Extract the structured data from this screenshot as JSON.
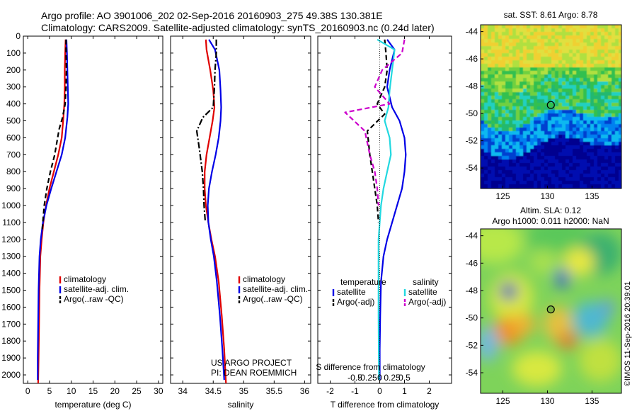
{
  "header": {
    "line1": "Argo profile: AO 3901006_202 02-Sep-2016 20160903_275 49.38S 130.381E",
    "line2": "Climatology: CARS2009. Satellite-adjusted climatology: synTS_20160903.nc (0.24d later)"
  },
  "colors": {
    "climatology": "#e00000",
    "satellite": "#0000e6",
    "argo": "#000000",
    "s_satellite": "#22d8e0",
    "s_argo": "#cc00cc"
  },
  "chart_data": [
    {
      "type": "line",
      "xlabel": "temperature (deg C)",
      "xlim": [
        -1,
        31
      ],
      "ylim": [
        2050,
        0
      ],
      "xticks": [
        0,
        5,
        10,
        15,
        20,
        25,
        30
      ],
      "xticklabels": [
        "0",
        "5",
        "10",
        "15",
        "20",
        "25",
        "30"
      ],
      "yticks": [
        0,
        100,
        200,
        300,
        400,
        500,
        600,
        700,
        800,
        900,
        1000,
        1100,
        1200,
        1300,
        1400,
        1500,
        1600,
        1700,
        1800,
        1900,
        2000
      ],
      "yticklabels": [
        "0",
        "100",
        "200",
        "300",
        "400",
        "500",
        "600",
        "700",
        "800",
        "900",
        "1000",
        "1100",
        "1200",
        "1300",
        "1400",
        "1500",
        "1600",
        "1700",
        "1800",
        "1900",
        "2000"
      ],
      "legend": [
        "climatology",
        "satellite-adj. clim.",
        "Argo(..raw -QC)"
      ],
      "series": [
        {
          "name": "climatology",
          "style": "solid",
          "color": "#e00000",
          "x": [
            8.7,
            8.6,
            8.5,
            8.5,
            8.4,
            8.2,
            7.8,
            7.0,
            6.0,
            5.0,
            4.2,
            3.6,
            3.2,
            2.9,
            2.7,
            2.6,
            2.5,
            2.4
          ],
          "y": [
            20,
            100,
            200,
            300,
            400,
            480,
            600,
            700,
            800,
            900,
            1000,
            1100,
            1200,
            1300,
            1500,
            1700,
            1900,
            2050
          ]
        },
        {
          "name": "satellite-adj. clim.",
          "style": "solid",
          "color": "#0000e6",
          "x": [
            8.9,
            9.0,
            9.1,
            9.2,
            9.3,
            9.1,
            8.6,
            7.8,
            6.6,
            5.4,
            4.3,
            3.5,
            3.0,
            2.7,
            2.5,
            2.4,
            2.3,
            2.3
          ],
          "y": [
            20,
            100,
            200,
            300,
            400,
            480,
            600,
            700,
            800,
            900,
            1000,
            1100,
            1200,
            1300,
            1500,
            1700,
            1900,
            2030
          ]
        },
        {
          "name": "Argo(..raw -QC)",
          "style": "dashed",
          "color": "#000000",
          "x": [
            8.8,
            8.8,
            8.9,
            8.8,
            8.6,
            8.0,
            7.2,
            6.2,
            5.2,
            4.4,
            3.8,
            3.3
          ],
          "y": [
            20,
            100,
            200,
            300,
            400,
            480,
            550,
            700,
            800,
            900,
            1000,
            1150
          ]
        }
      ]
    },
    {
      "type": "line",
      "xlabel": "salinity",
      "xlim": [
        33.8,
        36.1
      ],
      "ylim": [
        2050,
        0
      ],
      "xticks": [
        34,
        34.5,
        35,
        35.5,
        36
      ],
      "xticklabels": [
        "34",
        "34.5",
        "35",
        "35.5",
        "36"
      ],
      "legend": [
        "climatology",
        "satellite-adj. clim.",
        "Argo(..raw -QC)"
      ],
      "annotation": [
        "US ARGO PROJECT",
        "PI: DEAN ROEMMICH"
      ],
      "series": [
        {
          "name": "climatology",
          "style": "solid",
          "color": "#e00000",
          "x": [
            34.38,
            34.39,
            34.45,
            34.5,
            34.52,
            34.49,
            34.44,
            34.39,
            34.36,
            34.36,
            34.38,
            34.42,
            34.47,
            34.53,
            34.59,
            34.64,
            34.68,
            34.71
          ],
          "y": [
            20,
            80,
            200,
            320,
            420,
            500,
            600,
            700,
            800,
            900,
            1000,
            1100,
            1200,
            1300,
            1450,
            1650,
            1850,
            2050
          ]
        },
        {
          "name": "satellite-adj. clim.",
          "style": "solid",
          "color": "#0000e6",
          "x": [
            34.43,
            34.53,
            34.6,
            34.62,
            34.63,
            34.62,
            34.59,
            34.54,
            34.48,
            34.43,
            34.41,
            34.42,
            34.46,
            34.51,
            34.56,
            34.61,
            34.65,
            34.68
          ],
          "y": [
            20,
            80,
            200,
            320,
            420,
            500,
            600,
            700,
            800,
            900,
            1000,
            1100,
            1200,
            1300,
            1450,
            1650,
            1850,
            2030
          ]
        },
        {
          "name": "Argo(..raw -QC)",
          "style": "dashdot",
          "color": "#000000",
          "x": [
            34.55,
            34.55,
            34.53,
            34.52,
            34.5,
            34.33,
            34.23,
            34.27,
            34.32,
            34.34,
            34.35,
            34.37
          ],
          "y": [
            20,
            100,
            200,
            300,
            420,
            480,
            560,
            660,
            800,
            900,
            1000,
            1100
          ]
        }
      ]
    },
    {
      "type": "line",
      "xlabel": "T difference from climatology",
      "top_label": "S difference from climatology",
      "xlim": [
        -2.5,
        2.9
      ],
      "ylim": [
        2050,
        0
      ],
      "xticks": [
        -2,
        -1,
        0,
        1,
        2
      ],
      "xticklabels": [
        "-2",
        "-1",
        "0",
        "1",
        "2"
      ],
      "top_ticklabels": [
        "-0.5",
        "-0.25",
        "0",
        "0.25",
        "0.5"
      ],
      "legend_columns": [
        {
          "heading": "temperature",
          "items": [
            "satellite",
            "Argo(-adj)"
          ]
        },
        {
          "heading": "salinity",
          "items": [
            "satellite",
            "Argo(-adj)"
          ]
        }
      ],
      "series": [
        {
          "name": "temperature satellite",
          "style": "solid",
          "color": "#0000e6",
          "x": [
            0.3,
            0.6,
            0.4,
            0.3,
            0.5,
            0.8,
            1.0,
            1.05,
            1.0,
            0.9,
            0.7,
            0.5,
            0.3,
            0.15,
            0.05,
            0.02,
            0.0,
            0.0
          ],
          "y": [
            20,
            80,
            200,
            300,
            420,
            500,
            600,
            700,
            800,
            900,
            1000,
            1100,
            1200,
            1300,
            1450,
            1650,
            1850,
            2030
          ]
        },
        {
          "name": "temperature Argo(-adj)",
          "style": "dashed",
          "color": "#000000",
          "x": [
            0.2,
            0.25,
            0.3,
            0.2,
            -0.1,
            0.2,
            -0.5,
            -0.4,
            -0.3,
            -0.2,
            -0.1,
            -0.05
          ],
          "y": [
            20,
            100,
            200,
            300,
            400,
            460,
            560,
            700,
            800,
            900,
            1000,
            1100
          ]
        },
        {
          "name": "salinity satellite",
          "style": "solid",
          "color": "#22d8e0",
          "x": [
            -0.1,
            0.6,
            0.5,
            0.4,
            0.35,
            0.2,
            0.4,
            0.45,
            0.3,
            0.15,
            0.05,
            0.0,
            -0.05,
            -0.05,
            -0.05,
            -0.05,
            -0.04,
            -0.03
          ],
          "y": [
            20,
            80,
            200,
            320,
            420,
            500,
            600,
            700,
            800,
            900,
            1000,
            1100,
            1200,
            1300,
            1450,
            1650,
            1850,
            2030
          ]
        },
        {
          "name": "salinity Argo(-adj)",
          "style": "dashed",
          "color": "#cc00cc",
          "x": [
            1.0,
            0.9,
            0.1,
            -0.2,
            0.4,
            -1.4,
            -0.6,
            -0.4,
            -0.2,
            -0.1,
            -0.05
          ],
          "y": [
            20,
            100,
            200,
            300,
            400,
            450,
            560,
            700,
            800,
            900,
            1000
          ]
        }
      ]
    },
    {
      "type": "heatmap",
      "title": "sat. SST: 8.61  Argo: 8.78",
      "xlim": [
        122.5,
        138.3
      ],
      "ylim": [
        -55.5,
        -43.5
      ],
      "xticks": [
        125,
        130,
        135
      ],
      "yticks": [
        -44,
        -46,
        -48,
        -50,
        -52,
        -54
      ],
      "marker": {
        "x": 130.38,
        "y": -49.38
      }
    },
    {
      "type": "heatmap",
      "title": "Altim. SLA: 0.12",
      "subtitle": "Argo h1000: 0.011 h2000: NaN",
      "xlim": [
        122.5,
        138.3
      ],
      "ylim": [
        -55.5,
        -43.5
      ],
      "xticks": [
        125,
        130,
        135
      ],
      "yticks": [
        -44,
        -46,
        -48,
        -50,
        -52,
        -54
      ],
      "marker": {
        "x": 130.38,
        "y": -49.38
      }
    }
  ],
  "credit": "©IMOS 11-Sep-2016 20:39:01"
}
